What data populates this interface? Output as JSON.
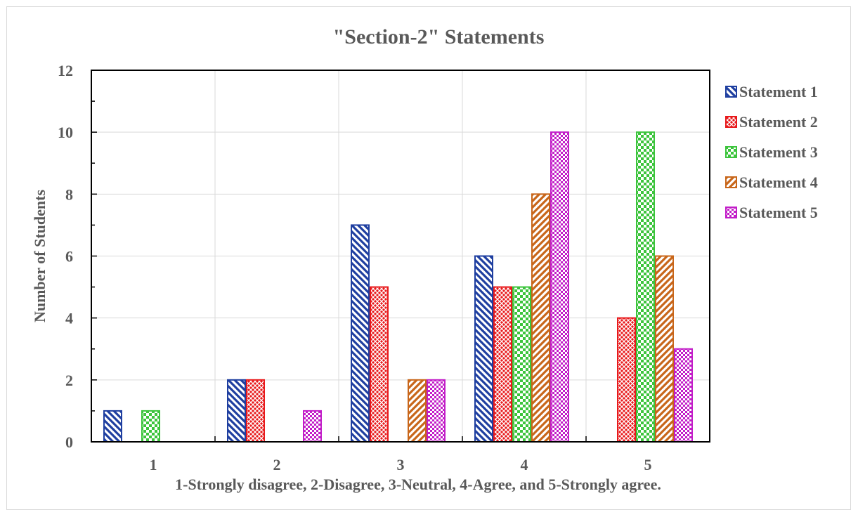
{
  "chart_data": {
    "type": "bar",
    "title": "\"Section-2\" Statements",
    "xlabel": "1-Strongly disagree,  2-Disagree,  3-Neutral,  4-Agree, and  5-Strongly agree.",
    "ylabel": "Number of Students",
    "categories": [
      "1",
      "2",
      "3",
      "4",
      "5"
    ],
    "ylim": [
      0,
      12
    ],
    "yticks": [
      "0",
      "2",
      "4",
      "6",
      "8",
      "10",
      "12"
    ],
    "grid": true,
    "legend_position": "right",
    "series": [
      {
        "name": "Statement 1",
        "values": [
          1,
          2,
          7,
          6,
          0
        ],
        "color": "#1f3fa0",
        "pattern": "diagonal-down"
      },
      {
        "name": "Statement 2",
        "values": [
          0,
          2,
          5,
          5,
          4
        ],
        "color": "#e8191b",
        "pattern": "crosshatch"
      },
      {
        "name": "Statement 3",
        "values": [
          1,
          0,
          0,
          5,
          10
        ],
        "color": "#3cc43c",
        "pattern": "checker"
      },
      {
        "name": "Statement 4",
        "values": [
          0,
          0,
          2,
          8,
          6
        ],
        "color": "#c8661a",
        "pattern": "diagonal-up"
      },
      {
        "name": "Statement 5",
        "values": [
          0,
          1,
          2,
          10,
          3
        ],
        "color": "#c21dc8",
        "pattern": "small-checker"
      }
    ]
  }
}
